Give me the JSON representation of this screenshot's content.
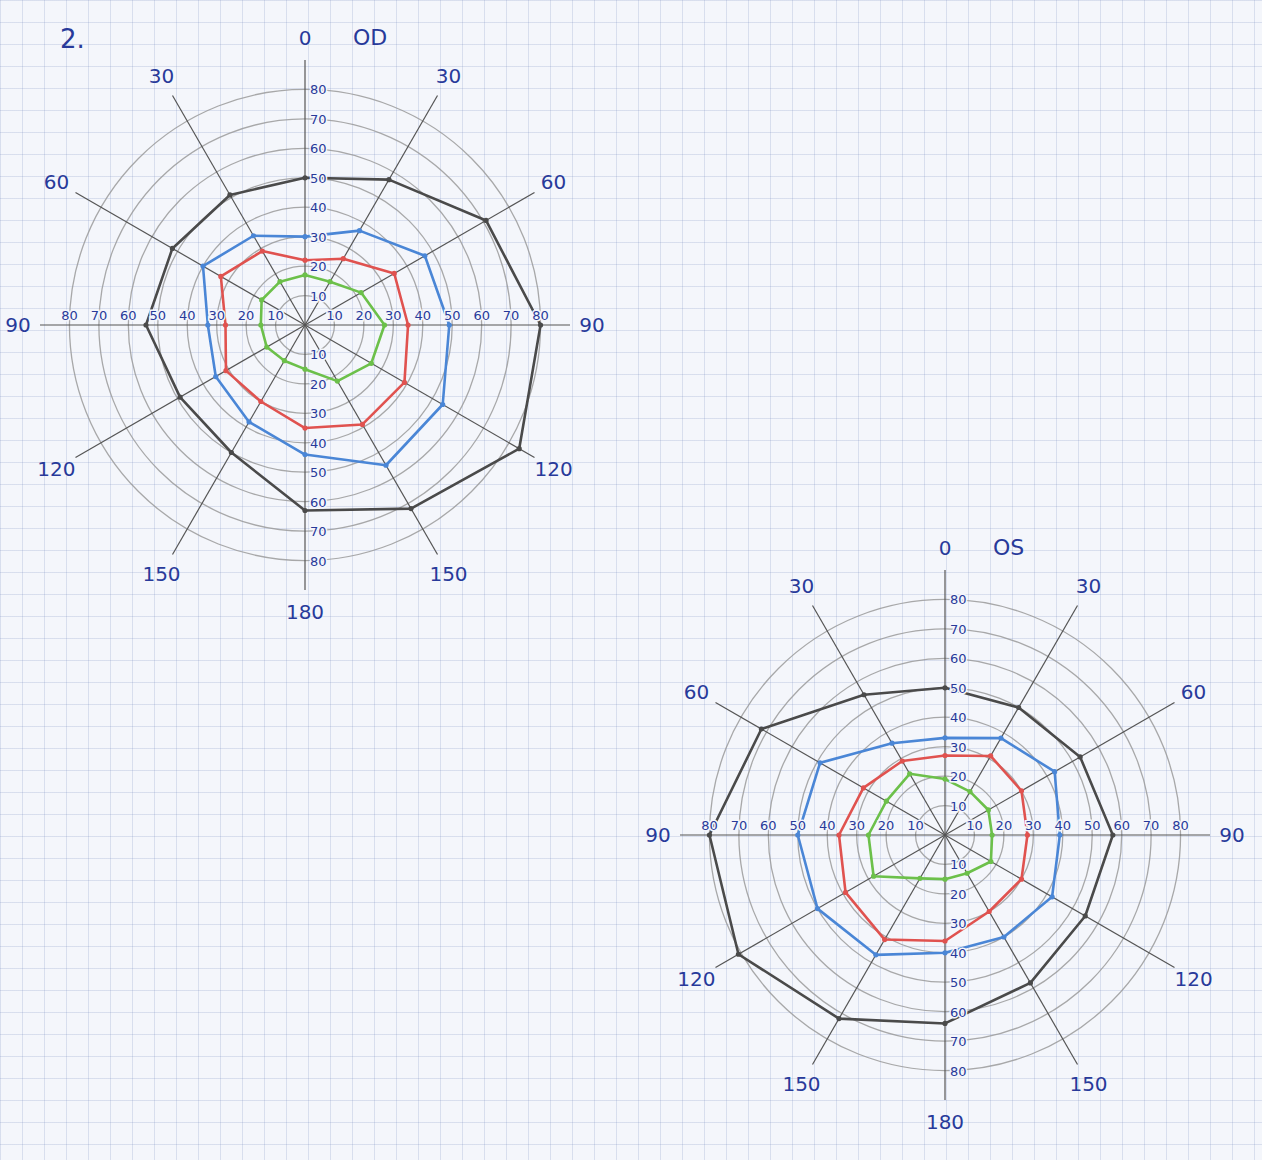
{
  "heading": "2.",
  "chart_data": [
    {
      "type": "radar",
      "title": "OD",
      "categories": [
        0,
        30,
        60,
        90,
        120,
        150,
        180,
        150,
        120,
        90,
        60,
        30
      ],
      "rlim": [
        0,
        90
      ],
      "rticks": [
        10,
        20,
        30,
        40,
        50,
        60,
        70,
        80
      ],
      "grid": true,
      "series": [
        {
          "color": "#6cc04a",
          "values": [
            17,
            17,
            22,
            27,
            26,
            22,
            15,
            14,
            15,
            15,
            17,
            17
          ]
        },
        {
          "color": "#e0524f",
          "values": [
            22,
            26,
            35,
            35,
            39,
            39,
            35,
            30,
            31,
            27,
            33,
            29
          ]
        },
        {
          "color": "#4a86d6",
          "values": [
            30,
            37,
            47,
            49,
            54,
            55,
            44,
            38,
            35,
            33,
            40,
            35
          ]
        },
        {
          "color": "#4a4a4a",
          "values": [
            50,
            57,
            71,
            80,
            84,
            72,
            63,
            50,
            49,
            54,
            52,
            51
          ]
        }
      ]
    },
    {
      "type": "radar",
      "title": "OS",
      "categories": [
        0,
        30,
        60,
        90,
        120,
        150,
        180,
        150,
        120,
        90,
        60,
        30
      ],
      "rlim": [
        0,
        90
      ],
      "rticks": [
        10,
        20,
        30,
        40,
        50,
        60,
        70,
        80
      ],
      "grid": true,
      "series": [
        {
          "color": "#6cc04a",
          "values": [
            19,
            17,
            17,
            16,
            18,
            15,
            15,
            17,
            28,
            26,
            23,
            24
          ]
        },
        {
          "color": "#e0524f",
          "values": [
            27,
            31,
            30,
            28,
            30,
            30,
            36,
            41,
            39,
            36,
            32,
            29
          ]
        },
        {
          "color": "#4a86d6",
          "values": [
            33,
            38,
            43,
            39,
            42,
            40,
            40,
            47,
            50,
            50,
            49,
            36
          ]
        },
        {
          "color": "#4a4a4a",
          "values": [
            50,
            50,
            53,
            57,
            55,
            58,
            64,
            72,
            81,
            80,
            72,
            55
          ]
        }
      ]
    }
  ]
}
